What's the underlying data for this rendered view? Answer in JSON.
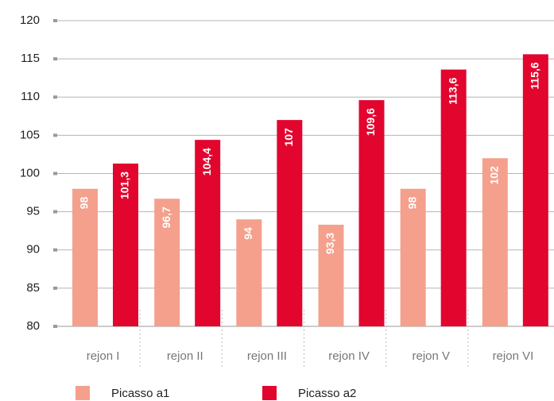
{
  "chart_data": {
    "type": "bar",
    "categories": [
      "rejon I",
      "rejon II",
      "rejon III",
      "rejon IV",
      "rejon V",
      "rejon VI"
    ],
    "series": [
      {
        "name": "Picasso a1",
        "color": "#f4a08d",
        "values": [
          98,
          96.7,
          94,
          93.3,
          98,
          102
        ],
        "value_labels": [
          "98",
          "96,7",
          "94",
          "93,3",
          "98",
          "102"
        ]
      },
      {
        "name": "Picasso a2",
        "color": "#e2062f",
        "values": [
          101.3,
          104.4,
          107,
          109.6,
          113.6,
          115.6
        ],
        "value_labels": [
          "101,3",
          "104,4",
          "107",
          "109,6",
          "113,6",
          "115,6"
        ]
      }
    ],
    "ylim": [
      80,
      120
    ],
    "yticks": [
      80,
      85,
      90,
      95,
      100,
      105,
      110,
      115,
      120
    ],
    "grid": true,
    "legend": "bottom"
  }
}
